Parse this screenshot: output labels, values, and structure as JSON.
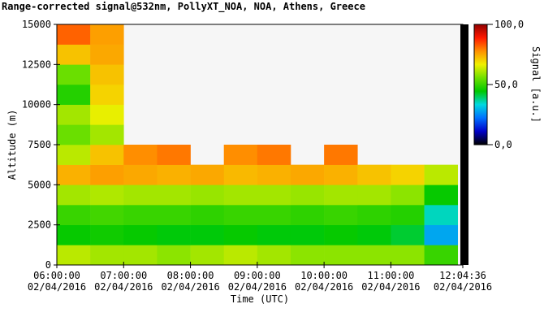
{
  "chart_data": {
    "type": "heatmap",
    "title": "Range-corrected signal@532nm, PollyXT_NOA, NOA, Athens, Greece",
    "xlabel": "Time (UTC)",
    "ylabel": "Altitude (m)",
    "colorbar_label": "Signal [a.u.]",
    "xlim": [
      "2016-04-02T06:00:00",
      "2016-04-02T12:04:36"
    ],
    "xticks": [
      {
        "value": "2016-04-02T06:00:00",
        "label": "06:00:00\n02/04/2016"
      },
      {
        "value": "2016-04-02T07:00:00",
        "label": "07:00:00\n02/04/2016"
      },
      {
        "value": "2016-04-02T08:00:00",
        "label": "08:00:00\n02/04/2016"
      },
      {
        "value": "2016-04-02T09:00:00",
        "label": "09:00:00\n02/04/2016"
      },
      {
        "value": "2016-04-02T10:00:00",
        "label": "10:00:00\n02/04/2016"
      },
      {
        "value": "2016-04-02T11:00:00",
        "label": "11:00:00\n02/04/2016"
      },
      {
        "value": "2016-04-02T12:04:36",
        "label": "12:04:36\n02/04/2016"
      }
    ],
    "ylim": [
      0,
      15000
    ],
    "yticks": [
      0,
      2500,
      5000,
      7500,
      10000,
      12500,
      15000
    ],
    "clim": [
      0,
      100
    ],
    "cticks": [
      {
        "value": 0,
        "label": "0,0"
      },
      {
        "value": 50,
        "label": "50,0"
      },
      {
        "value": 100,
        "label": "100,0"
      }
    ],
    "colormap": [
      "#000000",
      "#0000c8",
      "#0070ff",
      "#00d8e0",
      "#00c800",
      "#70e000",
      "#f0f000",
      "#ff9000",
      "#ff1800",
      "#900000"
    ],
    "x_edges": [
      "2016-04-02T06:00:00",
      "2016-04-02T06:30:00",
      "2016-04-02T07:00:00",
      "2016-04-02T07:30:00",
      "2016-04-02T08:00:00",
      "2016-04-02T08:30:00",
      "2016-04-02T09:00:00",
      "2016-04-02T09:30:00",
      "2016-04-02T10:00:00",
      "2016-04-02T10:30:00",
      "2016-04-02T11:00:00",
      "2016-04-02T11:30:00",
      "2016-04-02T12:00:00"
    ],
    "y_edges": [
      0,
      1250,
      2500,
      3750,
      5000,
      6250,
      7500,
      8750,
      10000,
      11250,
      12500,
      13750,
      15000
    ],
    "values": [
      [
        62,
        60,
        60,
        58,
        60,
        62,
        60,
        58,
        58,
        58,
        58,
        50
      ],
      [
        45,
        46,
        45,
        44,
        44,
        45,
        44,
        44,
        45,
        44,
        42,
        28
      ],
      [
        50,
        51,
        50,
        50,
        49,
        50,
        50,
        49,
        50,
        49,
        48,
        35
      ],
      [
        60,
        61,
        60,
        60,
        59,
        60,
        60,
        59,
        60,
        60,
        58,
        45
      ],
      [
        74,
        76,
        75,
        74,
        75,
        73,
        74,
        75,
        74,
        72,
        70,
        62
      ],
      [
        62,
        72,
        78,
        80,
        null,
        78,
        80,
        null,
        80,
        null,
        null,
        null
      ],
      [
        55,
        60,
        null,
        null,
        null,
        null,
        null,
        null,
        null,
        null,
        null,
        null
      ],
      [
        60,
        66,
        null,
        null,
        null,
        null,
        null,
        null,
        null,
        null,
        null,
        null
      ],
      [
        48,
        70,
        null,
        null,
        null,
        null,
        null,
        null,
        null,
        null,
        null,
        null
      ],
      [
        55,
        72,
        null,
        null,
        null,
        null,
        null,
        null,
        null,
        null,
        null,
        null
      ],
      [
        72,
        75,
        null,
        null,
        null,
        null,
        null,
        null,
        null,
        null,
        null,
        null
      ],
      [
        82,
        76,
        null,
        null,
        null,
        null,
        null,
        null,
        null,
        null,
        null,
        null
      ]
    ]
  }
}
